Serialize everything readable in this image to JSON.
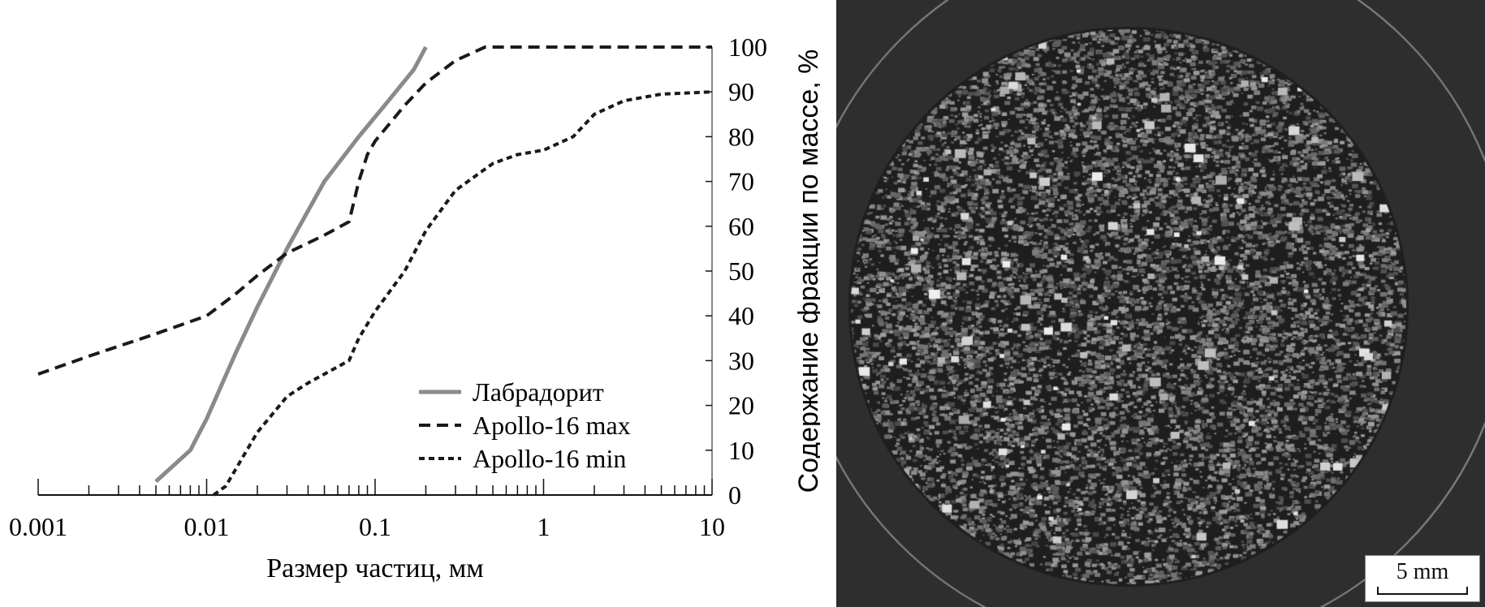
{
  "chart_data": {
    "type": "line",
    "xlabel": "Размер частиц, мм",
    "ylabel": "Содержание фракции по массе, %",
    "xscale": "log",
    "xlim": [
      0.001,
      10
    ],
    "ylim": [
      0,
      100
    ],
    "xticks": [
      "0.001",
      "0.01",
      "0.1",
      "1",
      "10"
    ],
    "yticks": [
      "0",
      "10",
      "20",
      "30",
      "40",
      "50",
      "60",
      "70",
      "80",
      "90",
      "100"
    ],
    "grid": false,
    "legend_position": "bottom-right",
    "series": [
      {
        "name": "Лабрадорит",
        "style": "solid",
        "color": "#8a8a8a",
        "x": [
          0.005,
          0.008,
          0.01,
          0.015,
          0.02,
          0.03,
          0.05,
          0.08,
          0.12,
          0.17,
          0.2
        ],
        "y": [
          3,
          10,
          17,
          32,
          42,
          55,
          70,
          80,
          88,
          95,
          100
        ]
      },
      {
        "name": "Apollo-16 max",
        "style": "dashed",
        "color": "#1a1a1a",
        "x": [
          0.001,
          0.002,
          0.005,
          0.01,
          0.015,
          0.02,
          0.03,
          0.05,
          0.07,
          0.08,
          0.09,
          0.1,
          0.15,
          0.2,
          0.3,
          0.45,
          10
        ],
        "y": [
          27,
          31,
          36,
          40,
          45,
          49,
          54,
          58,
          61,
          70,
          76,
          79,
          87,
          92,
          97,
          100,
          100
        ]
      },
      {
        "name": "Apollo-16 min",
        "style": "dotted",
        "color": "#1a1a1a",
        "x": [
          0.011,
          0.013,
          0.02,
          0.03,
          0.04,
          0.05,
          0.07,
          0.08,
          0.1,
          0.15,
          0.2,
          0.3,
          0.5,
          0.7,
          1,
          1.5,
          2,
          3,
          5,
          10
        ],
        "y": [
          0,
          2,
          14,
          22,
          25,
          27,
          30,
          35,
          41,
          50,
          59,
          68,
          74,
          76,
          77,
          80,
          85,
          88,
          89.5,
          90
        ]
      }
    ]
  },
  "photo": {
    "scale_bar": "5 mm"
  }
}
